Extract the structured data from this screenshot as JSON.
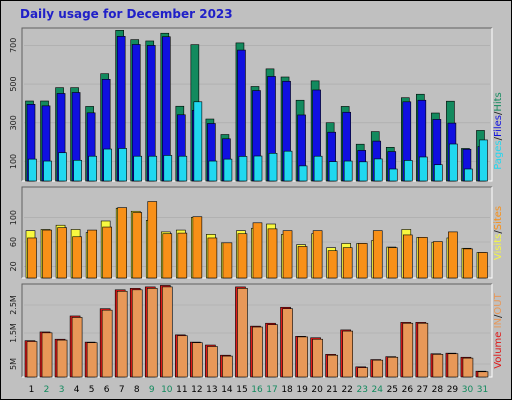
{
  "chart_data": {
    "title": "Daily usage for December 2023",
    "categories": [
      "1",
      "2",
      "3",
      "4",
      "5",
      "6",
      "7",
      "8",
      "9",
      "10",
      "11",
      "12",
      "13",
      "14",
      "15",
      "16",
      "17",
      "18",
      "19",
      "20",
      "21",
      "22",
      "23",
      "24",
      "25",
      "26",
      "27",
      "28",
      "29",
      "30",
      "31"
    ],
    "weekend_days": [
      "2",
      "3",
      "9",
      "10",
      "16",
      "17",
      "23",
      "24",
      "30",
      "31"
    ],
    "colors": {
      "hits": "#138a5e",
      "files": "#1010e0",
      "pages": "#20d8f0",
      "visits": "#f8f840",
      "sites": "#f89018",
      "volume_in": "#e01818",
      "volume_out": "#e89858",
      "weekday_label": "#000000",
      "weekend_label": "#138a5e",
      "title": "#2020c8"
    },
    "panels": [
      {
        "type": "bar",
        "legend": {
          "pages": "Pages",
          "files": "Files",
          "hits": "Hits"
        },
        "y_ticks": [
          "100",
          "300",
          "500",
          "700"
        ],
        "ylim": [
          0,
          790
        ],
        "series": [
          {
            "name": "Hits",
            "values": [
              413,
              413,
              482,
              482,
              385,
              554,
              778,
              730,
              723,
              763,
              386,
              704,
              320,
              240,
              713,
              488,
              579,
              537,
              417,
              517,
              301,
              385,
              190,
              255,
              174,
              430,
              448,
              351,
              412,
              168,
              261
            ]
          },
          {
            "name": "Files",
            "values": [
              396,
              388,
              452,
              457,
              352,
              525,
              747,
              705,
              700,
              745,
              342,
              365,
              297,
              218,
              676,
              467,
              540,
              515,
              341,
              470,
              252,
              355,
              158,
              206,
              152,
              409,
              417,
              318,
              299,
              164,
              178
            ]
          },
          {
            "name": "Pages",
            "values": [
              113,
              103,
              146,
              107,
              128,
              165,
              168,
              128,
              128,
              132,
              128,
              409,
              103,
              113,
              127,
              129,
              143,
              154,
              78,
              128,
              100,
              103,
              99,
              114,
              62,
              106,
              124,
              84,
              191,
              62,
              212
            ]
          }
        ]
      },
      {
        "type": "bar",
        "legend": {
          "visits": "Visits",
          "sites": "Sites"
        },
        "y_ticks": [
          "20",
          "60",
          "100"
        ],
        "ylim": [
          0,
          150
        ],
        "series": [
          {
            "name": "Visits",
            "values": [
              78,
              80,
              87,
              80,
              75,
              94,
              115,
              110,
              95,
              76,
              79,
              100,
              72,
              58,
              78,
              82,
              89,
              72,
              55,
              73,
              50,
              57,
              57,
              62,
              51,
              80,
              67,
              59,
              66,
              49,
              42
            ]
          },
          {
            "name": "Sites",
            "values": [
              66,
              79,
              83,
              68,
              79,
              84,
              116,
              108,
              126,
              73,
              74,
              101,
              66,
              58,
              73,
              91,
              81,
              78,
              52,
              78,
              45,
              50,
              57,
              78,
              50,
              71,
              67,
              60,
              76,
              48,
              42
            ]
          }
        ]
      },
      {
        "type": "bar",
        "legend": {
          "volume": "Volume",
          "in": "IN",
          "out": "OUT"
        },
        "y_ticks": [
          "5M",
          "1.5M",
          "2.5M"
        ],
        "ylim": [
          0,
          3.2
        ],
        "series": [
          {
            "name": "IN",
            "values": [
              1.25,
              1.55,
              1.3,
              2.1,
              1.2,
              2.35,
              3.0,
              3.05,
              3.1,
              3.15,
              1.45,
              1.2,
              1.1,
              0.75,
              3.1,
              1.75,
              1.85,
              2.4,
              1.4,
              1.35,
              0.78,
              1.62,
              0.35,
              0.6,
              0.7,
              1.88,
              1.88,
              0.8,
              0.82,
              0.68,
              0.2
            ]
          },
          {
            "name": "OUT",
            "values": [
              1.22,
              1.52,
              1.27,
              2.05,
              1.18,
              2.3,
              2.95,
              3.0,
              3.05,
              3.1,
              1.42,
              1.18,
              1.05,
              0.72,
              3.05,
              1.72,
              1.8,
              2.35,
              1.38,
              1.3,
              0.75,
              1.58,
              0.32,
              0.58,
              0.68,
              1.85,
              1.85,
              0.78,
              0.8,
              0.65,
              0.18
            ]
          }
        ]
      }
    ]
  }
}
